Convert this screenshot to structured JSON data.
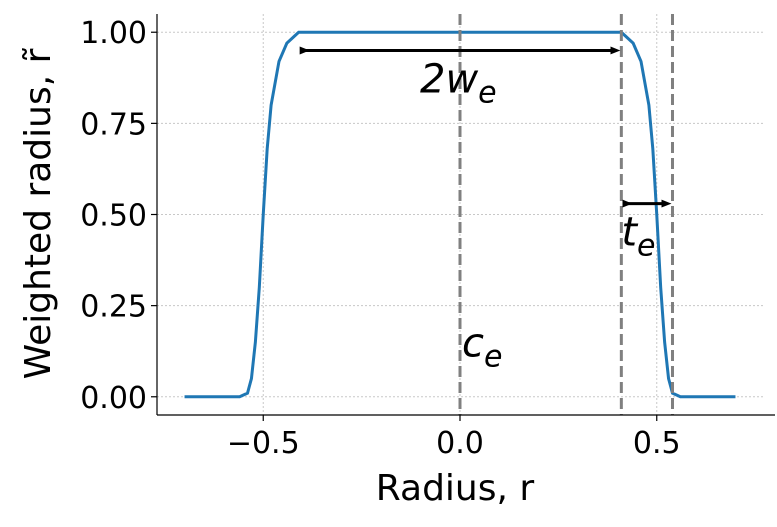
{
  "chart_data": {
    "type": "line",
    "xlabel": "Radius, r",
    "ylabel": "Weighted radius, r̃",
    "x": [
      -0.7,
      -0.6,
      -0.56,
      -0.54,
      -0.53,
      -0.52,
      -0.51,
      -0.5,
      -0.49,
      -0.48,
      -0.46,
      -0.44,
      -0.42,
      -0.41,
      -0.38,
      0,
      0.38,
      0.41,
      0.42,
      0.44,
      0.46,
      0.48,
      0.49,
      0.5,
      0.51,
      0.52,
      0.53,
      0.54,
      0.56,
      0.6,
      0.7
    ],
    "series": [
      {
        "color": "#1f77b4",
        "values": [
          0,
          0,
          0,
          0.01,
          0.05,
          0.15,
          0.3,
          0.5,
          0.68,
          0.8,
          0.92,
          0.97,
          0.99,
          1,
          1,
          1,
          1,
          1,
          0.99,
          0.97,
          0.92,
          0.8,
          0.68,
          0.5,
          0.3,
          0.15,
          0.05,
          0.01,
          0,
          0,
          0
        ]
      }
    ],
    "xlim": [
      -0.77,
      0.77
    ],
    "ylim": [
      -0.05,
      1.05
    ],
    "xticks": [
      {
        "value": -0.5,
        "label": "−0.5"
      },
      {
        "value": 0,
        "label": "0.0"
      },
      {
        "value": 0.5,
        "label": "0.5"
      }
    ],
    "yticks": [
      {
        "value": 0,
        "label": "0.00"
      },
      {
        "value": 0.25,
        "label": "0.25"
      },
      {
        "value": 0.5,
        "label": "0.50"
      },
      {
        "value": 0.75,
        "label": "0.75"
      },
      {
        "value": 1,
        "label": "1.00"
      }
    ],
    "grid": true,
    "vlines": [
      0,
      0.41,
      0.54
    ],
    "vline_color": "#808080",
    "annotations": [
      {
        "text": "2w",
        "sub": "e",
        "x": [
          -0.41,
          0.41
        ],
        "y": 0.95
      },
      {
        "text": "t",
        "sub": "e",
        "x": [
          0.41,
          0.54
        ],
        "y": 0.53
      },
      {
        "text": "c",
        "sub": "e",
        "x": [
          0
        ],
        "y": 0.1
      }
    ]
  }
}
